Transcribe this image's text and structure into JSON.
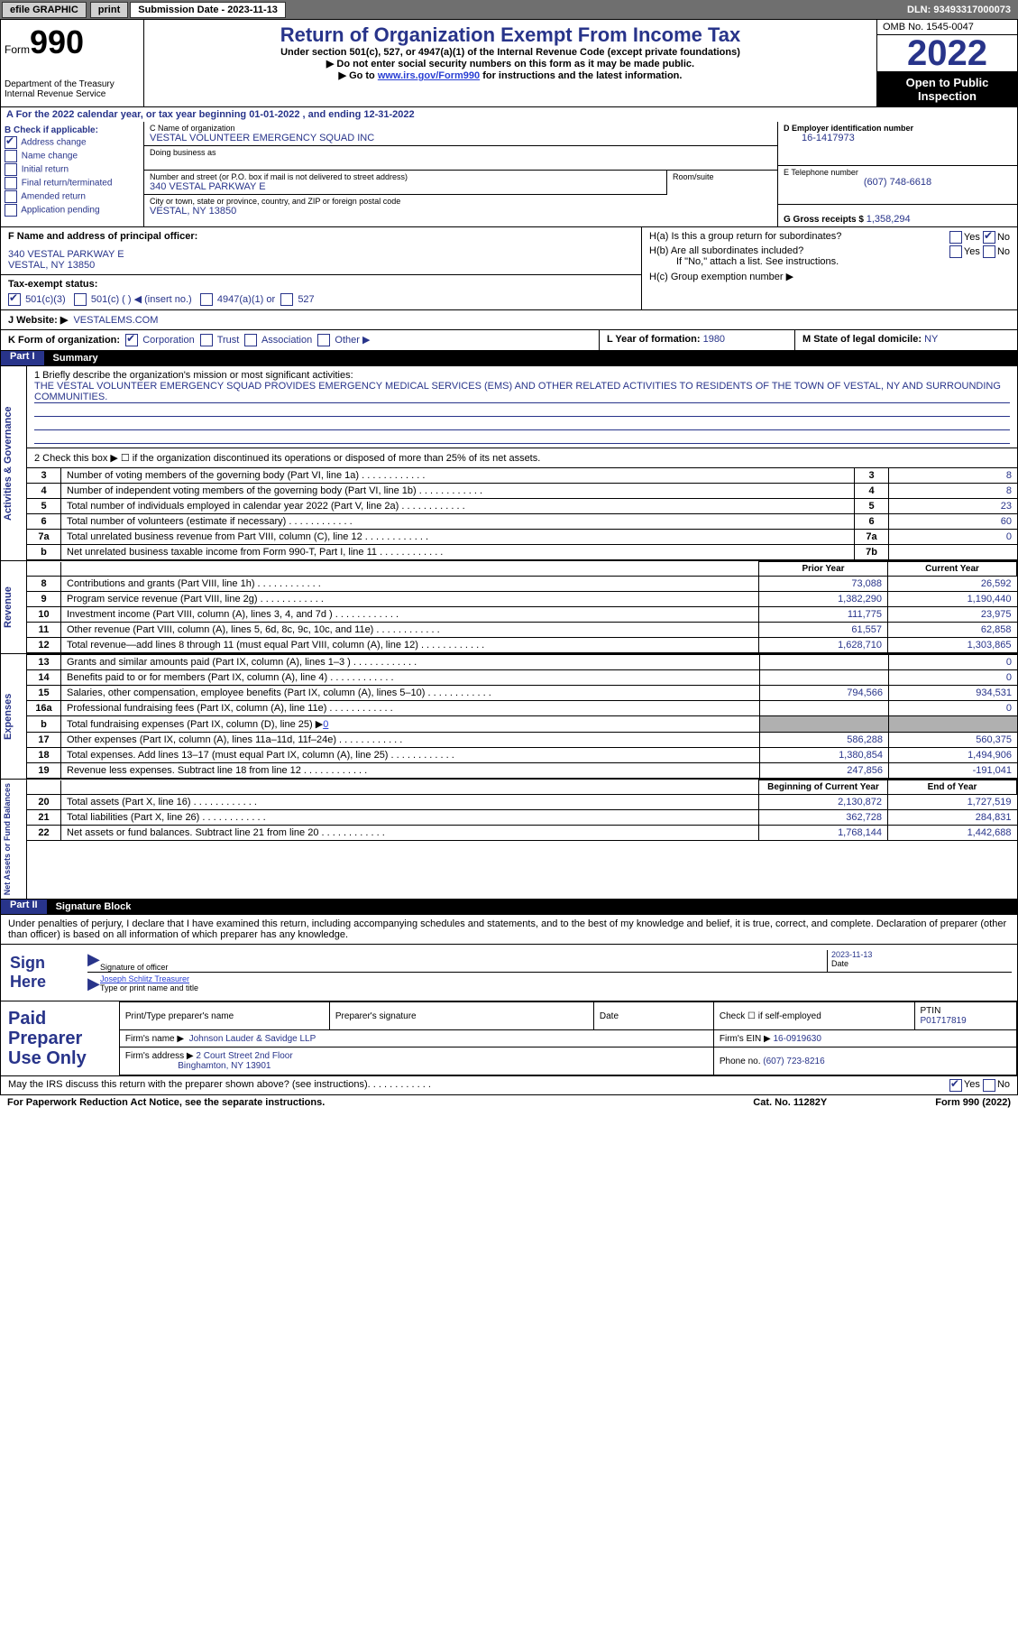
{
  "topbar": {
    "efile": "efile GRAPHIC",
    "print": "print",
    "sub_label": "Submission Date - 2023-11-13",
    "dln": "DLN: 93493317000073"
  },
  "header": {
    "form_label": "Form",
    "form_number": "990",
    "dept": "Department of the Treasury Internal Revenue Service",
    "title": "Return of Organization Exempt From Income Tax",
    "subtitle": "Under section 501(c), 527, or 4947(a)(1) of the Internal Revenue Code (except private foundations)",
    "note1": "Do not enter social security numbers on this form as it may be made public.",
    "note2_pre": "Go to ",
    "note2_link": "www.irs.gov/Form990",
    "note2_post": " for instructions and the latest information.",
    "omb": "OMB No. 1545-0047",
    "year": "2022",
    "open": "Open to Public Inspection"
  },
  "row_a": "A For the 2022 calendar year, or tax year beginning 01-01-2022    , and ending 12-31-2022",
  "section_b": {
    "b_label": "B Check if applicable:",
    "checks": [
      "Address change",
      "Name change",
      "Initial return",
      "Final return/terminated",
      "Amended return",
      "Application pending"
    ],
    "checked_index": 0,
    "c_label": "C Name of organization",
    "c_name": "VESTAL VOLUNTEER EMERGENCY SQUAD INC",
    "dba_label": "Doing business as",
    "street_label": "Number and street (or P.O. box if mail is not delivered to street address)",
    "street": "340 VESTAL PARKWAY E",
    "room_label": "Room/suite",
    "city_label": "City or town, state or province, country, and ZIP or foreign postal code",
    "city": "VESTAL, NY  13850",
    "d_label": "D Employer identification number",
    "d_ein": "16-1417973",
    "e_label": "E Telephone number",
    "e_phone": "(607) 748-6618",
    "g_label": "G Gross receipts $",
    "g_val": "1,358,294"
  },
  "fj": {
    "f_label": "F  Name and address of principal officer:",
    "f_addr1": "340 VESTAL PARKWAY E",
    "f_addr2": "VESTAL, NY  13850",
    "tax_label": "Tax-exempt status:",
    "tax_501c3": "501(c)(3)",
    "tax_501c": "501(c) (  ) ◀ (insert no.)",
    "tax_4947": "4947(a)(1) or",
    "tax_527": "527",
    "ha_label": "H(a)  Is this a group return for subordinates?",
    "hb_label": "H(b)  Are all subordinates included?",
    "hb_note": "If \"No,\" attach a list. See instructions.",
    "hc_label": "H(c)  Group exemption number ▶",
    "yes": "Yes",
    "no": "No"
  },
  "j": {
    "label": "J  Website: ▶",
    "value": "VESTALEMS.COM"
  },
  "kl": {
    "k_label": "K Form of organization:",
    "k_opts": [
      "Corporation",
      "Trust",
      "Association",
      "Other ▶"
    ],
    "l_label": "L Year of formation:",
    "l_val": "1980",
    "m_label": "M State of legal domicile:",
    "m_val": "NY"
  },
  "part1": {
    "header_label": "Part I",
    "header_title": "Summary",
    "side1": "Activities & Governance",
    "q1_label": "1  Briefly describe the organization's mission or most significant activities:",
    "q1_text": "THE VESTAL VOLUNTEER EMERGENCY SQUAD PROVIDES EMERGENCY MEDICAL SERVICES (EMS) AND OTHER RELATED ACTIVITIES TO RESIDENTS OF THE TOWN OF VESTAL, NY AND SURROUNDING COMMUNITIES.",
    "q2": "2   Check this box ▶ ☐  if the organization discontinued its operations or disposed of more than 25% of its net assets.",
    "rows_gov": [
      {
        "n": "3",
        "desc": "Number of voting members of the governing body (Part VI, line 1a)",
        "box": "3",
        "val": "8"
      },
      {
        "n": "4",
        "desc": "Number of independent voting members of the governing body (Part VI, line 1b)",
        "box": "4",
        "val": "8"
      },
      {
        "n": "5",
        "desc": "Total number of individuals employed in calendar year 2022 (Part V, line 2a)",
        "box": "5",
        "val": "23"
      },
      {
        "n": "6",
        "desc": "Total number of volunteers (estimate if necessary)",
        "box": "6",
        "val": "60"
      },
      {
        "n": "7a",
        "desc": "Total unrelated business revenue from Part VIII, column (C), line 12",
        "box": "7a",
        "val": "0"
      },
      {
        "n": "b",
        "desc": "Net unrelated business taxable income from Form 990-T, Part I, line 11",
        "box": "7b",
        "val": ""
      }
    ],
    "side2": "Revenue",
    "col_prior": "Prior Year",
    "col_current": "Current Year",
    "rows_rev": [
      {
        "n": "8",
        "desc": "Contributions and grants (Part VIII, line 1h)",
        "p": "73,088",
        "c": "26,592"
      },
      {
        "n": "9",
        "desc": "Program service revenue (Part VIII, line 2g)",
        "p": "1,382,290",
        "c": "1,190,440"
      },
      {
        "n": "10",
        "desc": "Investment income (Part VIII, column (A), lines 3, 4, and 7d )",
        "p": "111,775",
        "c": "23,975"
      },
      {
        "n": "11",
        "desc": "Other revenue (Part VIII, column (A), lines 5, 6d, 8c, 9c, 10c, and 11e)",
        "p": "61,557",
        "c": "62,858"
      },
      {
        "n": "12",
        "desc": "Total revenue—add lines 8 through 11 (must equal Part VIII, column (A), line 12)",
        "p": "1,628,710",
        "c": "1,303,865"
      }
    ],
    "side3": "Expenses",
    "rows_exp": [
      {
        "n": "13",
        "desc": "Grants and similar amounts paid (Part IX, column (A), lines 1–3 )",
        "p": "",
        "c": "0"
      },
      {
        "n": "14",
        "desc": "Benefits paid to or for members (Part IX, column (A), line 4)",
        "p": "",
        "c": "0"
      },
      {
        "n": "15",
        "desc": "Salaries, other compensation, employee benefits (Part IX, column (A), lines 5–10)",
        "p": "794,566",
        "c": "934,531"
      },
      {
        "n": "16a",
        "desc": "Professional fundraising fees (Part IX, column (A), line 11e)",
        "p": "",
        "c": "0"
      },
      {
        "n": "b",
        "desc": "Total fundraising expenses (Part IX, column (D), line 25) ▶",
        "p": "shaded",
        "c": "shaded",
        "sub": "0"
      },
      {
        "n": "17",
        "desc": "Other expenses (Part IX, column (A), lines 11a–11d, 11f–24e)",
        "p": "586,288",
        "c": "560,375"
      },
      {
        "n": "18",
        "desc": "Total expenses. Add lines 13–17 (must equal Part IX, column (A), line 25)",
        "p": "1,380,854",
        "c": "1,494,906"
      },
      {
        "n": "19",
        "desc": "Revenue less expenses. Subtract line 18 from line 12",
        "p": "247,856",
        "c": "-191,041"
      }
    ],
    "side4": "Net Assets or Fund Balances",
    "col_boy": "Beginning of Current Year",
    "col_eoy": "End of Year",
    "rows_net": [
      {
        "n": "20",
        "desc": "Total assets (Part X, line 16)",
        "p": "2,130,872",
        "c": "1,727,519"
      },
      {
        "n": "21",
        "desc": "Total liabilities (Part X, line 26)",
        "p": "362,728",
        "c": "284,831"
      },
      {
        "n": "22",
        "desc": "Net assets or fund balances. Subtract line 21 from line 20",
        "p": "1,768,144",
        "c": "1,442,688"
      }
    ]
  },
  "part2": {
    "header_label": "Part II",
    "header_title": "Signature Block",
    "declaration": "Under penalties of perjury, I declare that I have examined this return, including accompanying schedules and statements, and to the best of my knowledge and belief, it is true, correct, and complete. Declaration of preparer (other than officer) is based on all information of which preparer has any knowledge.",
    "sign_here": "Sign Here",
    "sig_officer": "Signature of officer",
    "sig_date": "2023-11-13",
    "date_lbl": "Date",
    "officer_name": "Joseph Schlitz Treasurer",
    "type_name": "Type or print name and title",
    "paid": "Paid Preparer Use Only",
    "prep_name_lbl": "Print/Type preparer's name",
    "prep_sig_lbl": "Preparer's signature",
    "check_self": "Check ☐ if self-employed",
    "ptin_lbl": "PTIN",
    "ptin": "P01717819",
    "firm_name_lbl": "Firm's name    ▶",
    "firm_name": "Johnson Lauder & Savidge LLP",
    "firm_ein_lbl": "Firm's EIN ▶",
    "firm_ein": "16-0919630",
    "firm_addr_lbl": "Firm's address ▶",
    "firm_addr1": "2 Court Street 2nd Floor",
    "firm_addr2": "Binghamton, NY  13901",
    "phone_lbl": "Phone no.",
    "phone": "(607) 723-8216",
    "discuss": "May the IRS discuss this return with the preparer shown above? (see instructions)",
    "paperwork": "For Paperwork Reduction Act Notice, see the separate instructions.",
    "cat": "Cat. No. 11282Y",
    "form_footer": "Form 990 (2022)"
  },
  "colors": {
    "brand": "#28348a",
    "link": "#2a3fd4",
    "topbar_bg": "#6f6f6f",
    "shaded": "#b0b0b0"
  }
}
